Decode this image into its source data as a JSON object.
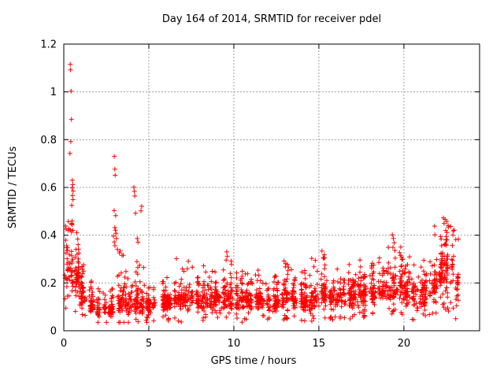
{
  "chart_data": {
    "type": "scatter",
    "title": "Day 164 of 2014, SRMTID for receiver pdel",
    "xlabel": "GPS time / hours",
    "ylabel": "SRMTID / TECUs",
    "xlim": [
      0,
      24.45
    ],
    "ylim": [
      0,
      1.2
    ],
    "xticks": [
      0,
      5,
      10,
      15,
      20
    ],
    "xtick_labels": [
      "0",
      "5",
      "10",
      "15",
      "20"
    ],
    "yticks": [
      0,
      0.2,
      0.4,
      0.6,
      0.8,
      1,
      1.2
    ],
    "ytick_labels": [
      "0",
      "0.2",
      "0.4",
      "0.6",
      "0.8",
      "1",
      "1.2"
    ],
    "grid": true,
    "legend": "none",
    "marker": "plus",
    "marker_size_px": 7,
    "colors": {
      "marker": "#ff0000",
      "grid": "#a0a0a0",
      "axis": "#000000",
      "text": "#000000",
      "background": "#ffffff"
    },
    "data_extent_hours": [
      0,
      23.2
    ],
    "outlier_points": [
      [
        0.38,
        1.115
      ],
      [
        0.4,
        1.092
      ],
      [
        0.43,
        1.003
      ],
      [
        0.45,
        0.885
      ],
      [
        0.41,
        0.792
      ],
      [
        0.36,
        0.742
      ],
      [
        0.5,
        0.63
      ],
      [
        0.53,
        0.612
      ],
      [
        0.49,
        0.598
      ],
      [
        0.55,
        0.585
      ],
      [
        0.51,
        0.566
      ],
      [
        0.54,
        0.549
      ],
      [
        0.47,
        0.525
      ],
      [
        2.97,
        0.73
      ],
      [
        3.0,
        0.676
      ],
      [
        3.02,
        0.651
      ],
      [
        2.96,
        0.503
      ],
      [
        3.05,
        0.482
      ],
      [
        3.0,
        0.432
      ],
      [
        3.04,
        0.421
      ],
      [
        3.07,
        0.408
      ],
      [
        2.92,
        0.396
      ],
      [
        3.1,
        0.386
      ],
      [
        2.97,
        0.372
      ],
      [
        3.01,
        0.356
      ],
      [
        3.16,
        0.341
      ],
      [
        3.32,
        0.334
      ],
      [
        3.5,
        0.316
      ],
      [
        4.12,
        0.601
      ],
      [
        4.15,
        0.584
      ],
      [
        4.17,
        0.564
      ],
      [
        4.22,
        0.492
      ],
      [
        4.58,
        0.521
      ],
      [
        4.54,
        0.502
      ],
      [
        4.32,
        0.386
      ],
      [
        4.36,
        0.371
      ],
      [
        6.62,
        0.302
      ],
      [
        7.32,
        0.291
      ],
      [
        9.58,
        0.33
      ],
      [
        9.62,
        0.312
      ],
      [
        9.55,
        0.296
      ],
      [
        12.95,
        0.292
      ],
      [
        13.05,
        0.281
      ],
      [
        15.18,
        0.334
      ],
      [
        15.32,
        0.318
      ],
      [
        15.25,
        0.305
      ],
      [
        19.32,
        0.402
      ],
      [
        19.38,
        0.386
      ],
      [
        19.43,
        0.368
      ],
      [
        19.35,
        0.349
      ],
      [
        19.47,
        0.336
      ],
      [
        21.8,
        0.438
      ],
      [
        21.82,
        0.402
      ],
      [
        22.32,
        0.472
      ],
      [
        22.42,
        0.466
      ],
      [
        22.52,
        0.458
      ],
      [
        22.36,
        0.449
      ],
      [
        22.6,
        0.441
      ],
      [
        22.96,
        0.421
      ],
      [
        22.88,
        0.401
      ],
      [
        23.05,
        0.382
      ],
      [
        22.75,
        0.118
      ],
      [
        22.9,
        0.095
      ],
      [
        23.1,
        0.105
      ],
      [
        22.62,
        0.082
      ]
    ],
    "cloud_bins": {
      "format": [
        "x_start",
        "x_end",
        "band_low",
        "band_high",
        "max",
        "count"
      ],
      "bins": [
        [
          0.0,
          0.5,
          0.1,
          0.42,
          0.46,
          58
        ],
        [
          0.5,
          1.0,
          0.1,
          0.34,
          0.44,
          50
        ],
        [
          1.0,
          1.5,
          0.08,
          0.22,
          0.3,
          45
        ],
        [
          1.5,
          2.0,
          0.06,
          0.15,
          0.22,
          42
        ],
        [
          2.0,
          2.5,
          0.05,
          0.13,
          0.18,
          42
        ],
        [
          2.5,
          3.0,
          0.05,
          0.14,
          0.25,
          42
        ],
        [
          3.0,
          3.5,
          0.06,
          0.18,
          0.34,
          46
        ],
        [
          3.5,
          4.0,
          0.06,
          0.16,
          0.25,
          42
        ],
        [
          4.0,
          4.5,
          0.06,
          0.17,
          0.3,
          44
        ],
        [
          4.5,
          5.0,
          0.06,
          0.16,
          0.28,
          42
        ],
        [
          5.0,
          5.5,
          0.06,
          0.15,
          0.2,
          42
        ],
        [
          5.5,
          6.0,
          0.07,
          0.16,
          0.22,
          42
        ],
        [
          6.0,
          6.5,
          0.07,
          0.17,
          0.24,
          44
        ],
        [
          6.5,
          7.0,
          0.07,
          0.18,
          0.26,
          44
        ],
        [
          7.0,
          7.5,
          0.08,
          0.18,
          0.27,
          44
        ],
        [
          7.5,
          8.0,
          0.08,
          0.19,
          0.28,
          44
        ],
        [
          8.0,
          8.5,
          0.07,
          0.19,
          0.28,
          44
        ],
        [
          8.5,
          9.0,
          0.07,
          0.18,
          0.26,
          44
        ],
        [
          9.0,
          9.5,
          0.08,
          0.18,
          0.26,
          44
        ],
        [
          9.5,
          10.0,
          0.08,
          0.2,
          0.3,
          46
        ],
        [
          10.0,
          10.5,
          0.07,
          0.18,
          0.26,
          44
        ],
        [
          10.5,
          11.0,
          0.08,
          0.19,
          0.27,
          44
        ],
        [
          11.0,
          11.5,
          0.07,
          0.19,
          0.27,
          46
        ],
        [
          11.5,
          12.0,
          0.07,
          0.18,
          0.25,
          44
        ],
        [
          12.0,
          12.5,
          0.06,
          0.17,
          0.26,
          44
        ],
        [
          12.5,
          13.0,
          0.07,
          0.19,
          0.27,
          46
        ],
        [
          13.0,
          13.5,
          0.08,
          0.2,
          0.28,
          46
        ],
        [
          13.5,
          14.0,
          0.07,
          0.19,
          0.27,
          44
        ],
        [
          14.0,
          14.5,
          0.06,
          0.18,
          0.26,
          44
        ],
        [
          14.5,
          15.0,
          0.07,
          0.19,
          0.31,
          44
        ],
        [
          15.0,
          15.5,
          0.08,
          0.21,
          0.32,
          46
        ],
        [
          15.5,
          16.0,
          0.08,
          0.2,
          0.3,
          44
        ],
        [
          16.0,
          16.5,
          0.08,
          0.2,
          0.29,
          44
        ],
        [
          16.5,
          17.0,
          0.08,
          0.21,
          0.3,
          46
        ],
        [
          17.0,
          17.5,
          0.09,
          0.22,
          0.3,
          46
        ],
        [
          17.5,
          18.0,
          0.09,
          0.22,
          0.31,
          46
        ],
        [
          18.0,
          18.5,
          0.09,
          0.23,
          0.31,
          46
        ],
        [
          18.5,
          19.0,
          0.1,
          0.24,
          0.33,
          46
        ],
        [
          19.0,
          19.5,
          0.1,
          0.26,
          0.36,
          46
        ],
        [
          19.5,
          20.0,
          0.1,
          0.26,
          0.38,
          46
        ],
        [
          20.0,
          20.5,
          0.09,
          0.24,
          0.31,
          46
        ],
        [
          20.5,
          21.0,
          0.08,
          0.22,
          0.29,
          44
        ],
        [
          21.0,
          21.5,
          0.09,
          0.23,
          0.31,
          44
        ],
        [
          21.5,
          22.0,
          0.1,
          0.27,
          0.38,
          46
        ],
        [
          22.0,
          22.5,
          0.12,
          0.34,
          0.45,
          50
        ],
        [
          22.5,
          23.0,
          0.12,
          0.38,
          0.47,
          48
        ],
        [
          23.0,
          23.2,
          0.08,
          0.3,
          0.42,
          18
        ]
      ]
    },
    "seed": 164
  }
}
